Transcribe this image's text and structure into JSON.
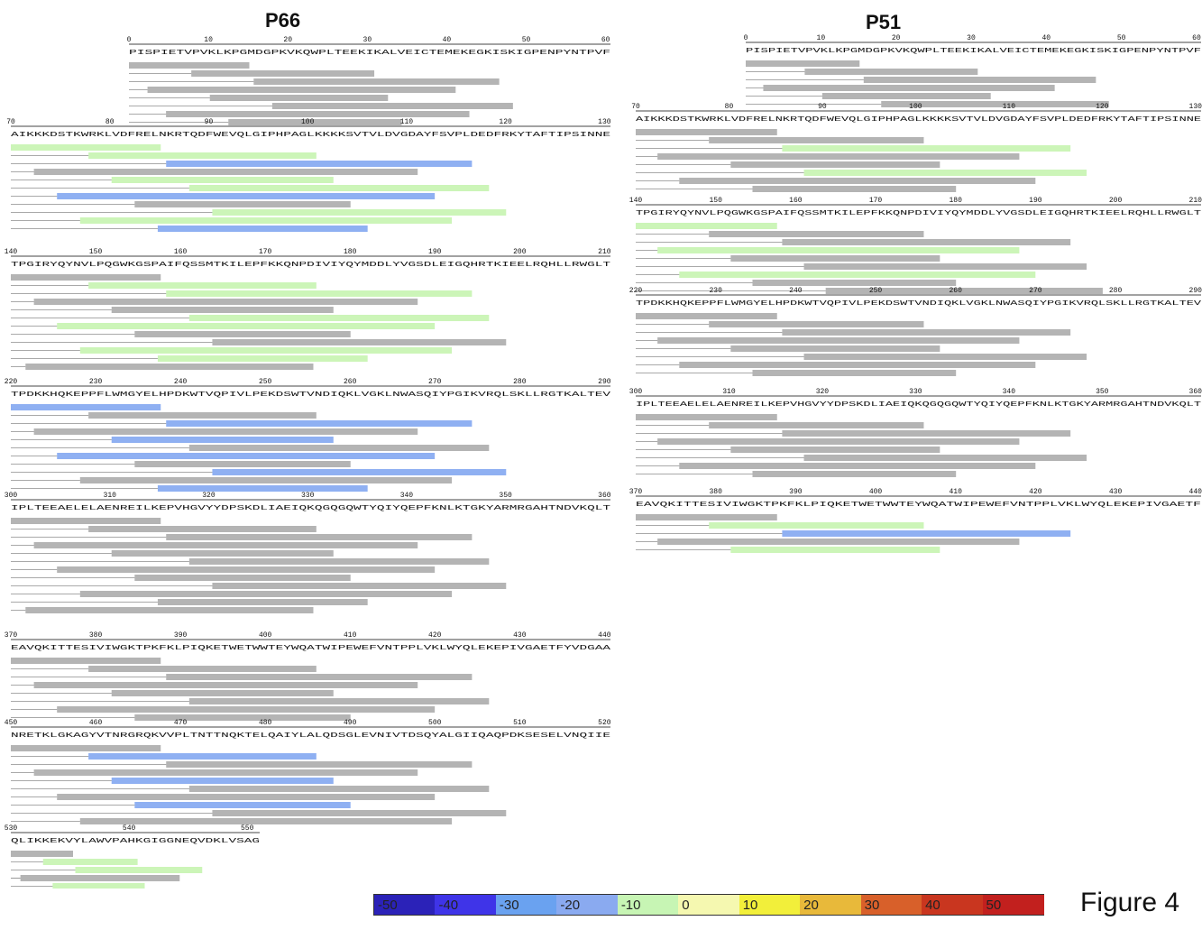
{
  "panels": {
    "p66": {
      "title": "P66"
    },
    "p51": {
      "title": "P51"
    }
  },
  "figure_label": "Figure 4",
  "color_scale": {
    "ticks": [
      "-50",
      "-40",
      "-30",
      "-20",
      "-10",
      "0",
      "10",
      "20",
      "30",
      "40",
      "50"
    ],
    "colors": [
      "#2b22b8",
      "#3f34e8",
      "#6aa2f0",
      "#8aaaf0",
      "#c7f5b4",
      "#f5f8b0",
      "#f2ef3a",
      "#e8b93a",
      "#d8602a",
      "#c9361f",
      "#c2201e"
    ]
  },
  "sequences": {
    "p66": [
      {
        "start": 0,
        "ticks": [
          "0",
          "10",
          "20",
          "30",
          "40",
          "50",
          "60"
        ],
        "residues": "PISPIETVPVKLKPGMDGPKVKQWPLTEEKIKALVEICTEMEKEGKISKIGPENPYNTPVF"
      },
      {
        "start": 70,
        "ticks": [
          "70",
          "80",
          "90",
          "100",
          "110",
          "120",
          "130"
        ],
        "residues": "AIKKKDSTKWRKLVDFRELNKRTQDFWEVQLGIPHPAGLKKKKSVTVLDVGDAYFSVPLDEDFRKYTAFTIPSINNE"
      },
      {
        "start": 140,
        "ticks": [
          "140",
          "150",
          "160",
          "170",
          "180",
          "190",
          "200",
          "210"
        ],
        "residues": "TPGIRYQYNVLPQGWKGSPAIFQSSMTKILEPFKKQNPDIVIYQYMDDLYVGSDLEIGQHRTKIEELRQHLLRWGLT"
      },
      {
        "start": 220,
        "ticks": [
          "220",
          "230",
          "240",
          "250",
          "260",
          "270",
          "280",
          "290"
        ],
        "residues": "TPDKKHQKEPPFLWMGYELHPDKWTVQPIVLPEKDSWTVNDIQKLVGKLNWASQIYPGIKVRQLSKLLRGTKALTEV"
      },
      {
        "start": 300,
        "ticks": [
          "300",
          "310",
          "320",
          "330",
          "340",
          "350",
          "360"
        ],
        "residues": "IPLTEEAELELAENREILKEPVHGVYYDPSKDLIAEIQKQGQGQWTYQIYQEPFKNLKTGKYARMRGAHTNDVKQLT"
      },
      {
        "start": 370,
        "ticks": [
          "370",
          "380",
          "390",
          "400",
          "410",
          "420",
          "430",
          "440"
        ],
        "residues": "EAVQKITTESIVIWGKTPKFKLPIQKETWETWWTEYWQATWIPEWEFVNTPPLVKLWYQLEKEPIVGAETFYVDGAA"
      },
      {
        "start": 450,
        "ticks": [
          "450",
          "460",
          "470",
          "480",
          "490",
          "500",
          "510",
          "520"
        ],
        "residues": "NRETKLGKAGYVTNRGRQKVVPLTNTTNQKTELQAIYLALQDSGLEVNIVTDSQYALGIIQAQPDKSESELVNQIIE"
      },
      {
        "start": 530,
        "ticks": [
          "530",
          "540",
          "550"
        ],
        "residues": "QLIKKEKVYLAWVPAHKGIGGNEQVDKLVSAG"
      }
    ],
    "p51": [
      {
        "start": 0,
        "ticks": [
          "0",
          "10",
          "20",
          "30",
          "40",
          "50",
          "60"
        ],
        "residues": "PISPIETVPVKLKPGMDGPKVKQWPLTEEKIKALVEICTEMEKEGKISKIGPENPYNTPVF"
      },
      {
        "start": 70,
        "ticks": [
          "70",
          "80",
          "90",
          "100",
          "110",
          "120",
          "130"
        ],
        "residues": "AIKKKDSTKWRKLVDFRELNKRTQDFWEVQLGIPHPAGLKKKKSVTVLDVGDAYFSVPLDEDFRKYTAFTIPSINNE"
      },
      {
        "start": 140,
        "ticks": [
          "140",
          "150",
          "160",
          "170",
          "180",
          "190",
          "200",
          "210"
        ],
        "residues": "TPGIRYQYNVLPQGWKGSPAIFQSSMTKILEPFKKQNPDIVIYQYMDDLYVGSDLEIGQHRTKIEELRQHLLRWGLT"
      },
      {
        "start": 220,
        "ticks": [
          "220",
          "230",
          "240",
          "250",
          "260",
          "270",
          "280",
          "290"
        ],
        "residues": "TPDKKHQKEPPFLWMGYELHPDKWTVQPIVLPEKDSWTVNDIQKLVGKLNWASQIYPGIKVRQLSKLLRGTKALTEV"
      },
      {
        "start": 300,
        "ticks": [
          "300",
          "310",
          "320",
          "330",
          "340",
          "350",
          "360"
        ],
        "residues": "IPLTEEAELELAENREILKEPVHGVYYDPSKDLIAEIQKQGQGQWTYQIYQEPFKNLKTGKYARMRGAHTNDVKQLT"
      },
      {
        "start": 370,
        "ticks": [
          "370",
          "380",
          "390",
          "400",
          "410",
          "420",
          "430",
          "440"
        ],
        "residues": "EAVQKITTESIVIWGKTPKFKLPIQKETWETWWTEYWQATWIPEWEFVNTPPLVKLWYQLEKEPIVGAETF"
      }
    ]
  },
  "legend_colors": {
    "grey": "#b4b4b4",
    "green": "#ccf5b8",
    "light_blue": "#8fb0f2",
    "mid_blue": "#6f97ea",
    "dark_blue": "#2a1fc4",
    "sky_blue": "#73aef0"
  }
}
